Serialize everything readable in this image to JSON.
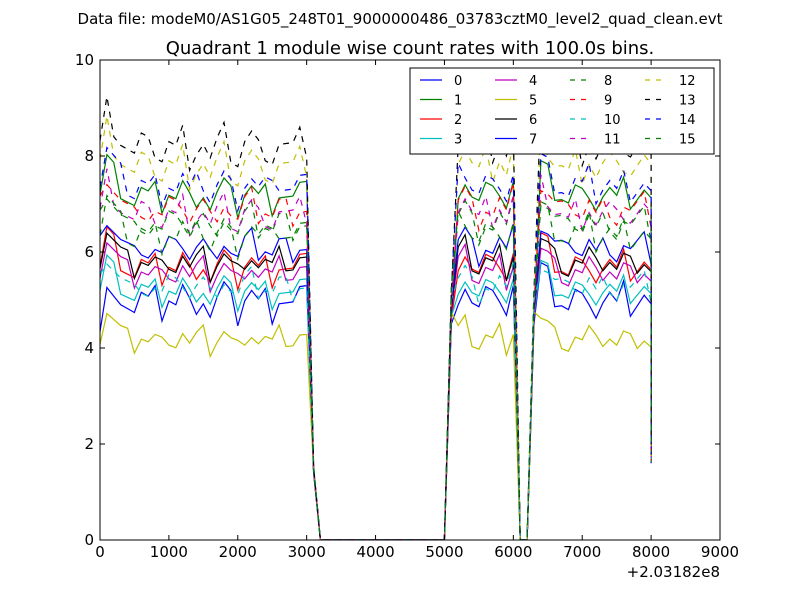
{
  "header": {
    "data_file": "Data file: modeM0/AS1G05_248T01_9000000486_03783cztM0_level2_quad_clean.evt"
  },
  "chart_data": {
    "type": "line",
    "title": "Quadrant 1 module wise count rates with 100.0s bins.",
    "x_offset_label": "+2.03182e8",
    "xlim": [
      0,
      9000
    ],
    "ylim": [
      0,
      10
    ],
    "xticks": [
      0,
      1000,
      2000,
      3000,
      4000,
      5000,
      6000,
      7000,
      8000,
      9000
    ],
    "yticks": [
      0,
      2,
      4,
      6,
      8,
      10
    ],
    "grid": false,
    "legend_position": "top-right",
    "legend_columns": 4,
    "bases": {
      "seg1": [
        [
          0,
          0
        ],
        [
          100,
          0.8
        ],
        [
          200,
          0.5
        ],
        [
          300,
          0.2
        ],
        [
          400,
          0
        ],
        [
          500,
          -0.2
        ],
        [
          600,
          0.1
        ],
        [
          700,
          -0.1
        ],
        [
          800,
          0
        ],
        [
          900,
          -0.2
        ],
        [
          1000,
          0.1
        ],
        [
          1100,
          -0.1
        ],
        [
          1200,
          0.2
        ],
        [
          1300,
          -0.2
        ],
        [
          1400,
          0
        ],
        [
          1500,
          0.1
        ],
        [
          1600,
          -0.3
        ],
        [
          1700,
          0
        ],
        [
          1800,
          0.2
        ],
        [
          1900,
          -0.1
        ],
        [
          2000,
          -0.3
        ],
        [
          2100,
          0.1
        ],
        [
          2200,
          0.2
        ],
        [
          2300,
          -0.1
        ],
        [
          2400,
          0
        ],
        [
          2500,
          -0.2
        ],
        [
          2600,
          0.1
        ],
        [
          2700,
          0
        ],
        [
          2800,
          -0.1
        ],
        [
          2900,
          0.1
        ],
        [
          3000,
          0
        ]
      ],
      "seg2": [
        [
          5200,
          0.2
        ],
        [
          5300,
          0.4
        ],
        [
          5400,
          0
        ],
        [
          5500,
          -0.2
        ],
        [
          5600,
          0.1
        ],
        [
          5700,
          -0.1
        ],
        [
          5800,
          0.2
        ],
        [
          5900,
          -0.2
        ],
        [
          6000,
          0.3
        ]
      ],
      "seg3": [
        [
          6400,
          0.6
        ],
        [
          6500,
          0.4
        ],
        [
          6600,
          0.1
        ],
        [
          6700,
          0
        ],
        [
          6800,
          -0.2
        ],
        [
          6900,
          0.1
        ],
        [
          7000,
          -0.1
        ],
        [
          7100,
          0.2
        ],
        [
          7200,
          -0.2
        ],
        [
          7300,
          0
        ],
        [
          7400,
          0.1
        ],
        [
          7500,
          -0.2
        ],
        [
          7600,
          0.1
        ],
        [
          7700,
          -0.1
        ],
        [
          7800,
          0
        ],
        [
          7900,
          0.1
        ],
        [
          8000,
          -0.2
        ]
      ]
    },
    "series": [
      {
        "name": "0",
        "color": "#0000ff",
        "dash": "solid",
        "level": 5.0,
        "amp": 1.0
      },
      {
        "name": "1",
        "color": "#008000",
        "dash": "solid",
        "level": 7.2,
        "amp": 0.9
      },
      {
        "name": "2",
        "color": "#ff0000",
        "dash": "solid",
        "level": 5.7,
        "amp": 0.9
      },
      {
        "name": "3",
        "color": "#00bfbf",
        "dash": "solid",
        "level": 5.2,
        "amp": 0.8
      },
      {
        "name": "4",
        "color": "#bf00bf",
        "dash": "solid",
        "level": 5.6,
        "amp": 0.8
      },
      {
        "name": "5",
        "color": "#bfbf00",
        "dash": "solid",
        "level": 4.2,
        "amp": 0.7
      },
      {
        "name": "6",
        "color": "#000000",
        "dash": "solid",
        "level": 5.8,
        "amp": 0.8
      },
      {
        "name": "7",
        "color": "#0000ff",
        "dash": "solid",
        "level": 6.1,
        "amp": 0.8
      },
      {
        "name": "8",
        "color": "#008000",
        "dash": "dashed",
        "level": 6.6,
        "amp": 0.9
      },
      {
        "name": "9",
        "color": "#ff0000",
        "dash": "dashed",
        "level": 6.9,
        "amp": 0.9
      },
      {
        "name": "10",
        "color": "#00bfbf",
        "dash": "dashed",
        "level": 5.3,
        "amp": 0.8
      },
      {
        "name": "11",
        "color": "#bf00bf",
        "dash": "dashed",
        "level": 6.8,
        "amp": 0.9
      },
      {
        "name": "12",
        "color": "#bfbf00",
        "dash": "dashed",
        "level": 7.8,
        "amp": 1.0
      },
      {
        "name": "13",
        "color": "#000000",
        "dash": "dashed",
        "level": 8.2,
        "amp": 1.0
      },
      {
        "name": "14",
        "color": "#0000ff",
        "dash": "dashed",
        "level": 7.4,
        "amp": 0.9
      },
      {
        "name": "15",
        "color": "#008000",
        "dash": "dashed",
        "level": 6.4,
        "amp": 0.9
      }
    ]
  }
}
